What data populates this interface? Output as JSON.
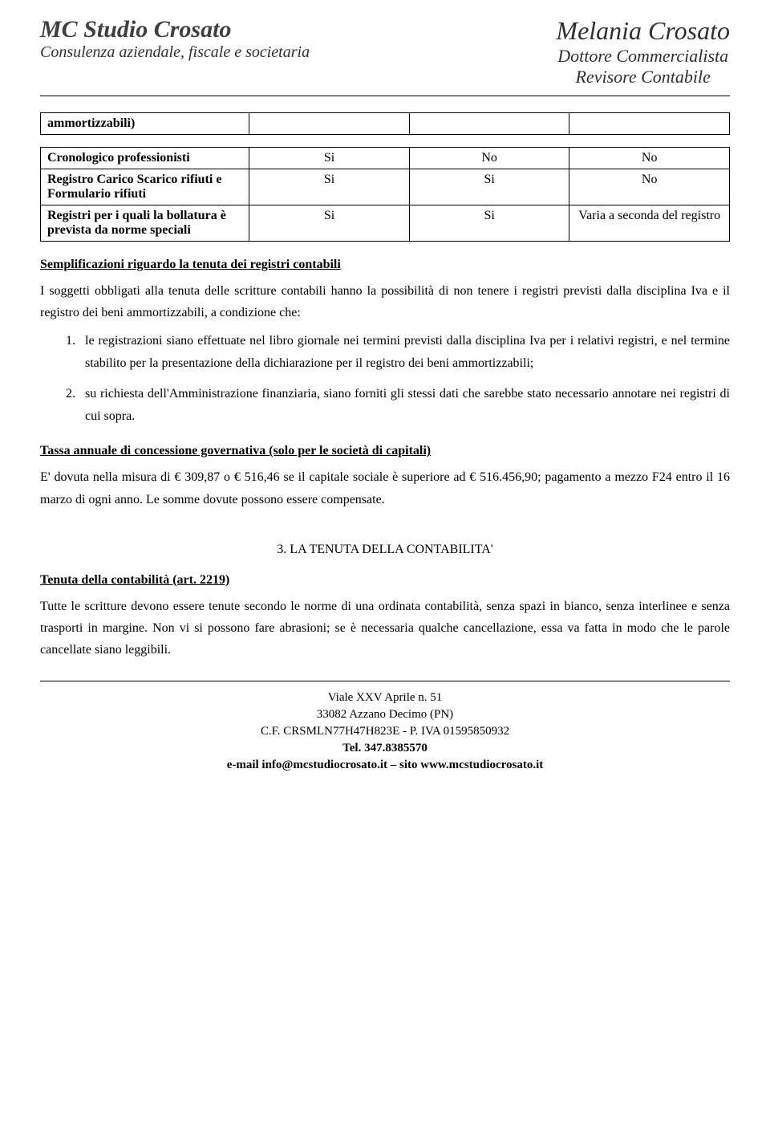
{
  "header": {
    "studio_name": "MC Studio Crosato",
    "studio_sub": "Consulenza aziendale, fiscale e societaria",
    "person_name": "Melania Crosato",
    "person_title1": "Dottore Commercialista",
    "person_title2": "Revisore Contabile"
  },
  "table1": {
    "row1_label": "ammortizzabili)",
    "row1_v1": "",
    "row1_v2": "",
    "row1_v3": ""
  },
  "table2": {
    "row1_label": "Cronologico professionisti",
    "row1_v1": "Si",
    "row1_v2": "No",
    "row1_v3": "No",
    "row2_label": "Registro Carico Scarico rifiuti e Formulario rifiuti",
    "row2_v1": "Si",
    "row2_v2": "Si",
    "row2_v3": "No",
    "row3_label": "Registri per i quali la bollatura è prevista da norme speciali",
    "row3_v1": "Si",
    "row3_v2": "Si",
    "row3_v3": "Varia a seconda del registro"
  },
  "subhead1": "Semplificazioni riguardo la tenuta dei registri contabili",
  "para1": "I soggetti obbligati alla tenuta delle scritture contabili hanno la possibilità di non tenere i registri previsti dalla disciplina Iva e il registro dei beni ammortizzabili, a condizione che:",
  "list": {
    "item1": "le registrazioni siano effettuate nel libro giornale nei termini previsti dalla disciplina Iva per i relativi registri, e nel termine stabilito per la presentazione della dichiarazione per il registro dei beni ammortizzabili;",
    "item2": "su richiesta dell'Amministrazione finanziaria, siano forniti gli stessi dati che sarebbe stato necessario annotare nei registri di cui sopra."
  },
  "subhead2": "Tassa annuale di concessione governativa (solo per le società di capitali)",
  "para2": "E' dovuta nella misura di € 309,87 o € 516,46 se il capitale sociale è superiore ad € 516.456,90; pagamento a mezzo F24 entro il 16 marzo di ogni anno. Le somme dovute possono essere compensate.",
  "chapter": "3. LA TENUTA DELLA CONTABILITA'",
  "subhead3": "Tenuta della contabilità (art. 2219)",
  "para3": "Tutte le scritture devono essere tenute secondo le norme di una ordinata contabilità, senza spazi in bianco, senza interlinee e senza trasporti in margine. Non vi si possono fare abrasioni; se è necessaria qualche cancellazione, essa va fatta in modo che le parole cancellate siano leggibili.",
  "footer": {
    "line1": "Viale XXV Aprile n. 51",
    "line2": "33082 Azzano Decimo (PN)",
    "line3": "C.F. CRSMLN77H47H823E - P. IVA 01595850932",
    "line4": "Tel. 347.8385570",
    "line5": "e-mail info@mcstudiocrosato.it – sito www.mcstudiocrosato.it"
  }
}
